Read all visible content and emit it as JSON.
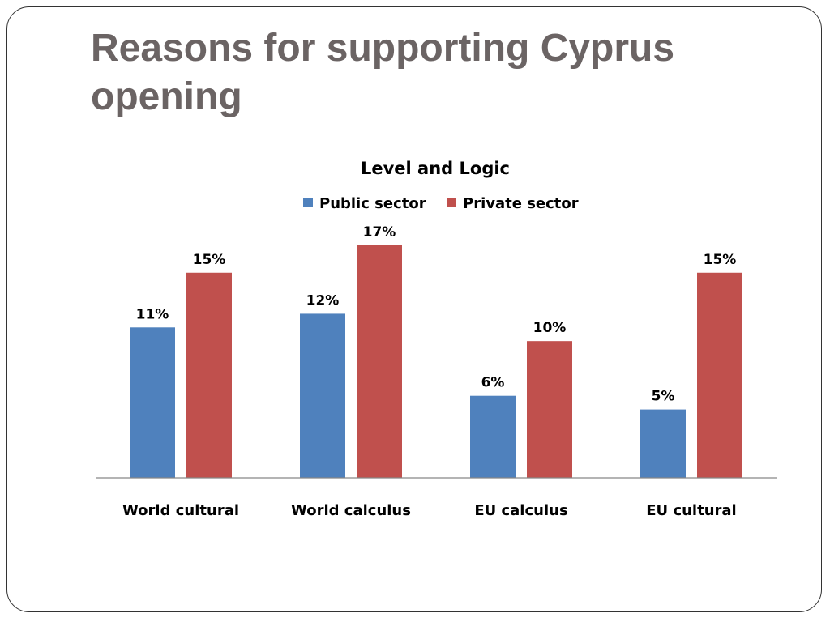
{
  "slide": {
    "title": "Reasons for supporting Cyprus opening"
  },
  "chart_data": {
    "type": "bar",
    "title": "Level and Logic",
    "xlabel": "",
    "ylabel": "",
    "categories": [
      "World cultural",
      "World calculus",
      "EU calculus",
      "EU cultural"
    ],
    "series": [
      {
        "name": "Public sector",
        "values": [
          11,
          12,
          6,
          5
        ],
        "labels": [
          "11%",
          "12%",
          "6%",
          "5%"
        ],
        "color": "#4f81bd"
      },
      {
        "name": "Private sector",
        "values": [
          15,
          17,
          10,
          15
        ],
        "labels": [
          "15%",
          "17%",
          "10%",
          "15%"
        ],
        "color": "#c0504d"
      }
    ],
    "ylim": [
      0,
      17
    ],
    "grid": false,
    "legend_position": "top"
  }
}
